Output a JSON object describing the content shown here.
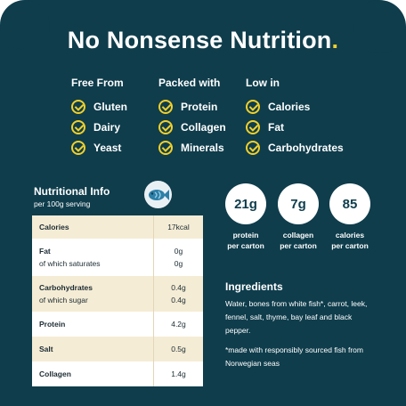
{
  "header": {
    "title": "No Nonsense Nutrition",
    "dot": "."
  },
  "columns": [
    {
      "heading": "Free From",
      "items": [
        "Gluten",
        "Dairy",
        "Yeast"
      ]
    },
    {
      "heading": "Packed with",
      "items": [
        "Protein",
        "Collagen",
        "Minerals"
      ]
    },
    {
      "heading": "Low in",
      "items": [
        "Calories",
        "Fat",
        "Carbohydrates"
      ]
    }
  ],
  "nutrition": {
    "title": "Nutritional Info",
    "subtitle": "per 100g serving",
    "rows": [
      {
        "label": "Calories",
        "sublabel": "",
        "value": "17kcal",
        "subvalue": ""
      },
      {
        "label": "Fat",
        "sublabel": "of which saturates",
        "value": "0g",
        "subvalue": "0g"
      },
      {
        "label": "Carbohydrates",
        "sublabel": "of which sugar",
        "value": "0.4g",
        "subvalue": "0.4g"
      },
      {
        "label": "Protein",
        "sublabel": "",
        "value": "4.2g",
        "subvalue": ""
      },
      {
        "label": "Salt",
        "sublabel": "",
        "value": "0.5g",
        "subvalue": ""
      },
      {
        "label": "Collagen",
        "sublabel": "",
        "value": "1.4g",
        "subvalue": ""
      }
    ]
  },
  "stats": [
    {
      "value": "21g",
      "caption1": "protein",
      "caption2": "per carton"
    },
    {
      "value": "7g",
      "caption1": "collagen",
      "caption2": "per carton"
    },
    {
      "value": "85",
      "caption1": "calories",
      "caption2": "per carton"
    }
  ],
  "ingredients": {
    "title": "Ingredients",
    "text": "Water, bones from white fish*, carrot, leek, fennel, salt, thyme, bay leaf and black pepper.",
    "note": "*made with responsibly sourced fish from Norwegian seas"
  },
  "colors": {
    "background": "#0f3d4c",
    "accent": "#f2d02a",
    "table_shade": "#f5ecd5"
  },
  "icons": {
    "check": "check-circle-icon",
    "fish": "fish-icon"
  }
}
